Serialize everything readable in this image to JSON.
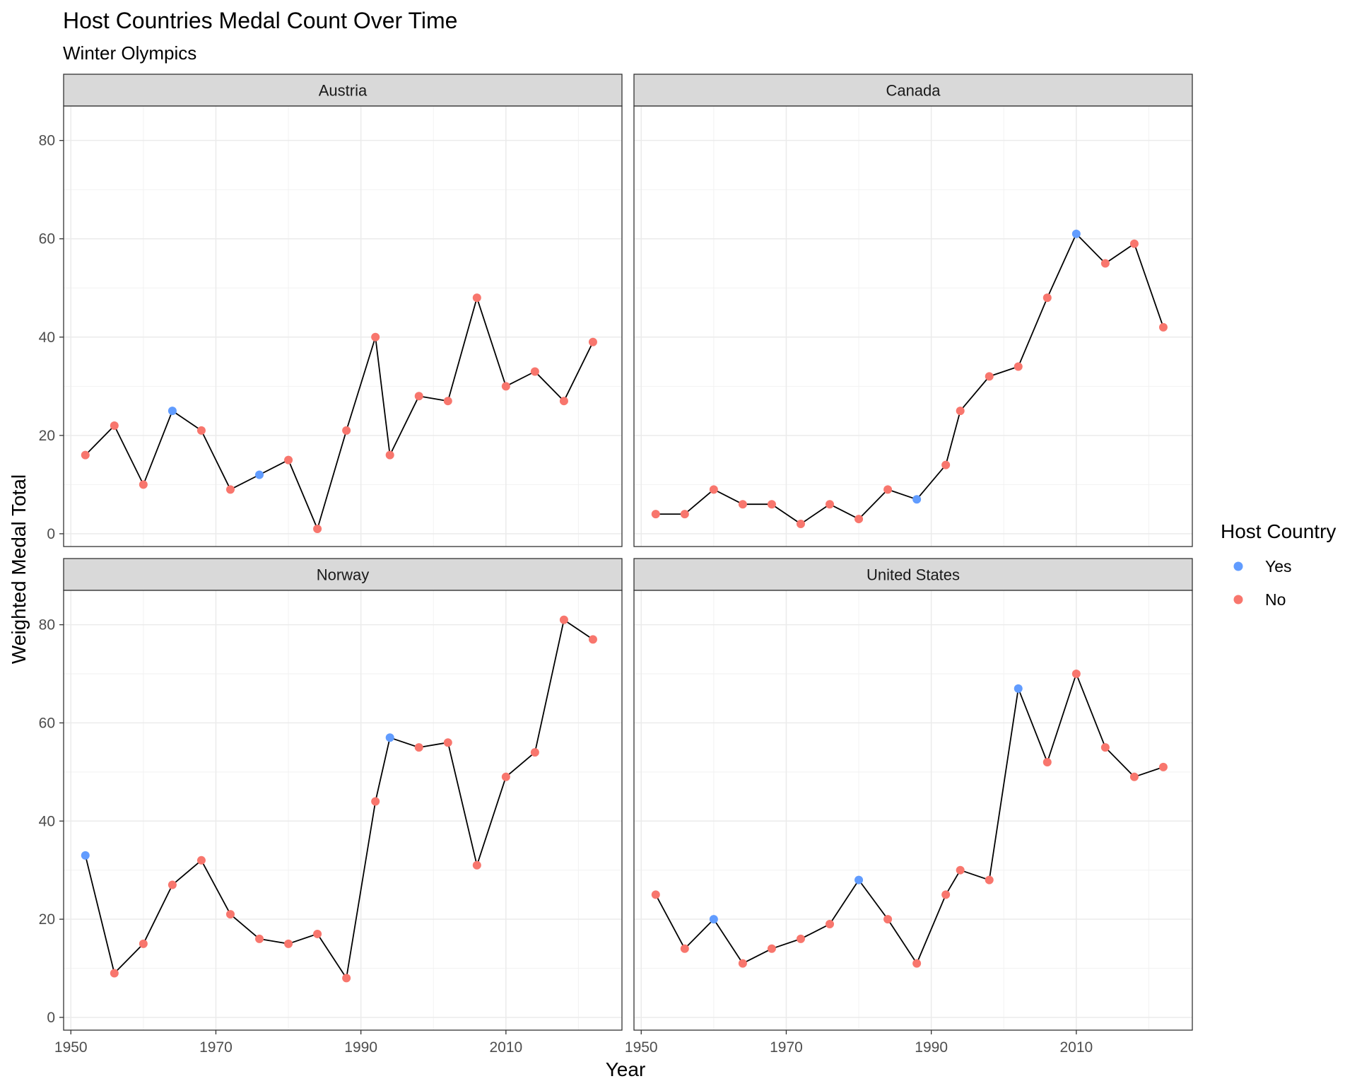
{
  "chart_data": {
    "type": "line",
    "title": "Host Countries Medal Count Over Time",
    "subtitle": "Winter Olympics",
    "xlabel": "Year",
    "ylabel": "Weighted Medal Total",
    "x_ticks": [
      1950,
      1970,
      1990,
      2010
    ],
    "y_ticks": [
      0,
      20,
      40,
      60,
      80
    ],
    "xlim": [
      1949,
      2026
    ],
    "ylim": [
      -2.6,
      87
    ],
    "grid": true,
    "legend": {
      "title": "Host Country",
      "position": "right",
      "items": [
        {
          "label": "Yes",
          "color": "#619CFF"
        },
        {
          "label": "No",
          "color": "#F8766D"
        }
      ]
    },
    "colors": {
      "line": "#000000",
      "host_yes": "#619CFF",
      "host_no": "#F8766D",
      "strip_fill": "#d9d9d9",
      "grid": "#ebebeb"
    },
    "facets": [
      {
        "name": "Austria",
        "x": [
          1952,
          1956,
          1960,
          1964,
          1968,
          1972,
          1976,
          1980,
          1984,
          1988,
          1992,
          1994,
          1998,
          2002,
          2006,
          2010,
          2014,
          2018,
          2022
        ],
        "y": [
          16,
          22,
          10,
          25,
          21,
          9,
          12,
          15,
          1,
          21,
          40,
          16,
          28,
          27,
          48,
          30,
          33,
          27,
          39
        ],
        "host": [
          "No",
          "No",
          "No",
          "Yes",
          "No",
          "No",
          "Yes",
          "No",
          "No",
          "No",
          "No",
          "No",
          "No",
          "No",
          "No",
          "No",
          "No",
          "No",
          "No"
        ]
      },
      {
        "name": "Canada",
        "x": [
          1952,
          1956,
          1960,
          1964,
          1968,
          1972,
          1976,
          1980,
          1984,
          1988,
          1992,
          1994,
          1998,
          2002,
          2006,
          2010,
          2014,
          2018,
          2022
        ],
        "y": [
          4,
          4,
          9,
          6,
          6,
          2,
          6,
          3,
          9,
          7,
          14,
          25,
          32,
          34,
          48,
          61,
          55,
          59,
          42
        ],
        "host": [
          "No",
          "No",
          "No",
          "No",
          "No",
          "No",
          "No",
          "No",
          "No",
          "Yes",
          "No",
          "No",
          "No",
          "No",
          "No",
          "Yes",
          "No",
          "No",
          "No"
        ]
      },
      {
        "name": "Norway",
        "x": [
          1952,
          1956,
          1960,
          1964,
          1968,
          1972,
          1976,
          1980,
          1984,
          1988,
          1992,
          1994,
          1998,
          2002,
          2006,
          2010,
          2014,
          2018,
          2022
        ],
        "y": [
          33,
          9,
          15,
          27,
          32,
          21,
          16,
          15,
          17,
          8,
          44,
          57,
          55,
          56,
          31,
          49,
          54,
          81,
          77
        ],
        "host": [
          "Yes",
          "No",
          "No",
          "No",
          "No",
          "No",
          "No",
          "No",
          "No",
          "No",
          "No",
          "Yes",
          "No",
          "No",
          "No",
          "No",
          "No",
          "No",
          "No"
        ]
      },
      {
        "name": "United States",
        "x": [
          1952,
          1956,
          1960,
          1964,
          1968,
          1972,
          1976,
          1980,
          1984,
          1988,
          1992,
          1994,
          1998,
          2002,
          2006,
          2010,
          2014,
          2018,
          2022
        ],
        "y": [
          25,
          14,
          20,
          11,
          14,
          16,
          19,
          28,
          20,
          11,
          25,
          30,
          28,
          67,
          52,
          70,
          55,
          49,
          51
        ],
        "host": [
          "No",
          "No",
          "Yes",
          "No",
          "No",
          "No",
          "No",
          "Yes",
          "No",
          "No",
          "No",
          "No",
          "No",
          "Yes",
          "No",
          "No",
          "No",
          "No",
          "No"
        ]
      }
    ]
  }
}
